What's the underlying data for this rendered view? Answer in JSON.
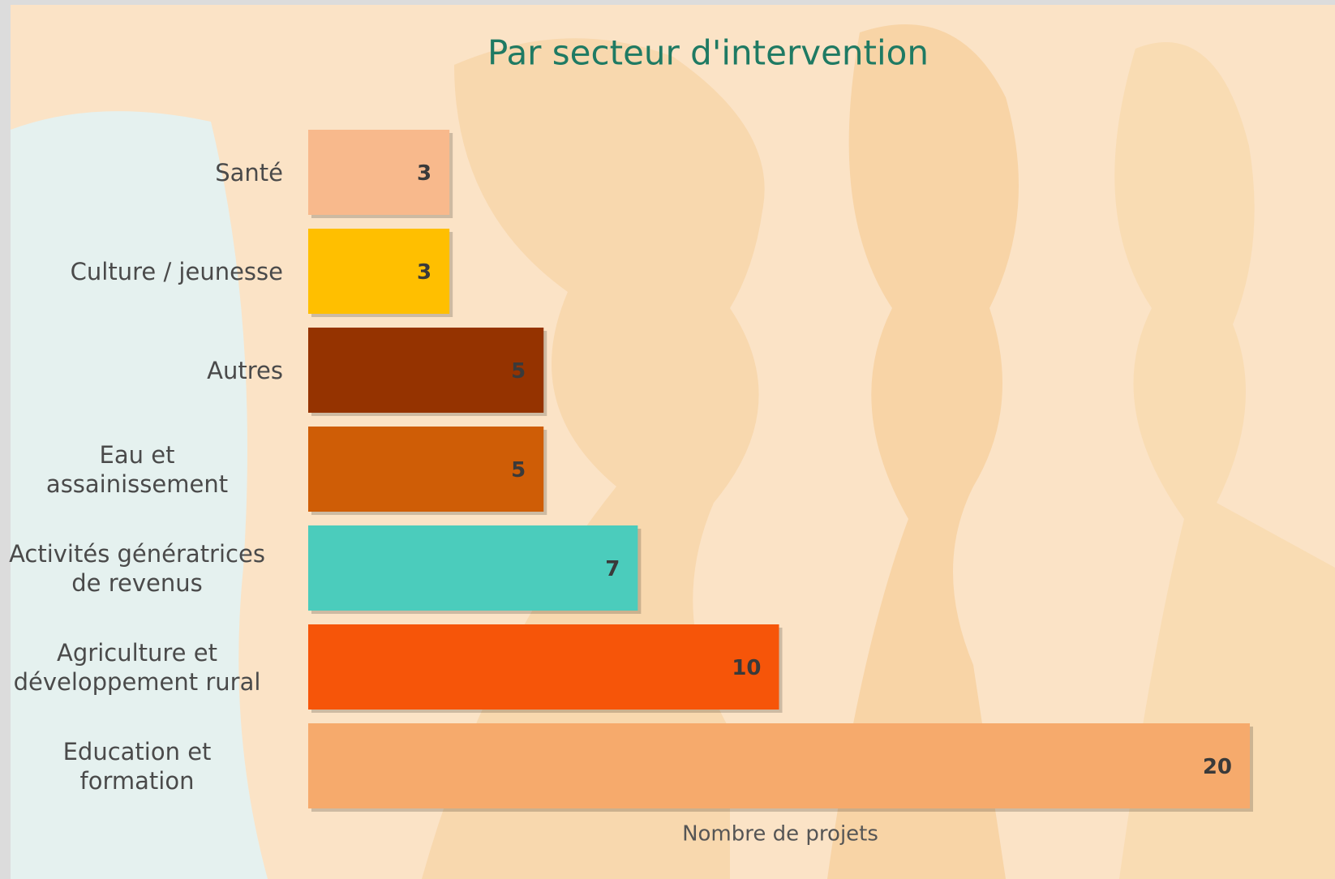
{
  "chart_data": {
    "type": "bar",
    "orientation": "horizontal",
    "title": "Par secteur d'intervention",
    "x_label": "Nombre de projets",
    "categories": [
      "Santé",
      "Culture / jeunesse",
      "Autres",
      "Eau et\nassainissement",
      "Activités génératrices\nde revenus",
      "Agriculture et\ndéveloppement rural",
      "Education et\nformation"
    ],
    "values": [
      3,
      3,
      5,
      5,
      7,
      10,
      20
    ],
    "colors": [
      "#f8b98c",
      "#ffbf00",
      "#953300",
      "#cf5d06",
      "#4bccbc",
      "#f65509",
      "#f6aa6c"
    ],
    "xlim": [
      0,
      20
    ]
  }
}
